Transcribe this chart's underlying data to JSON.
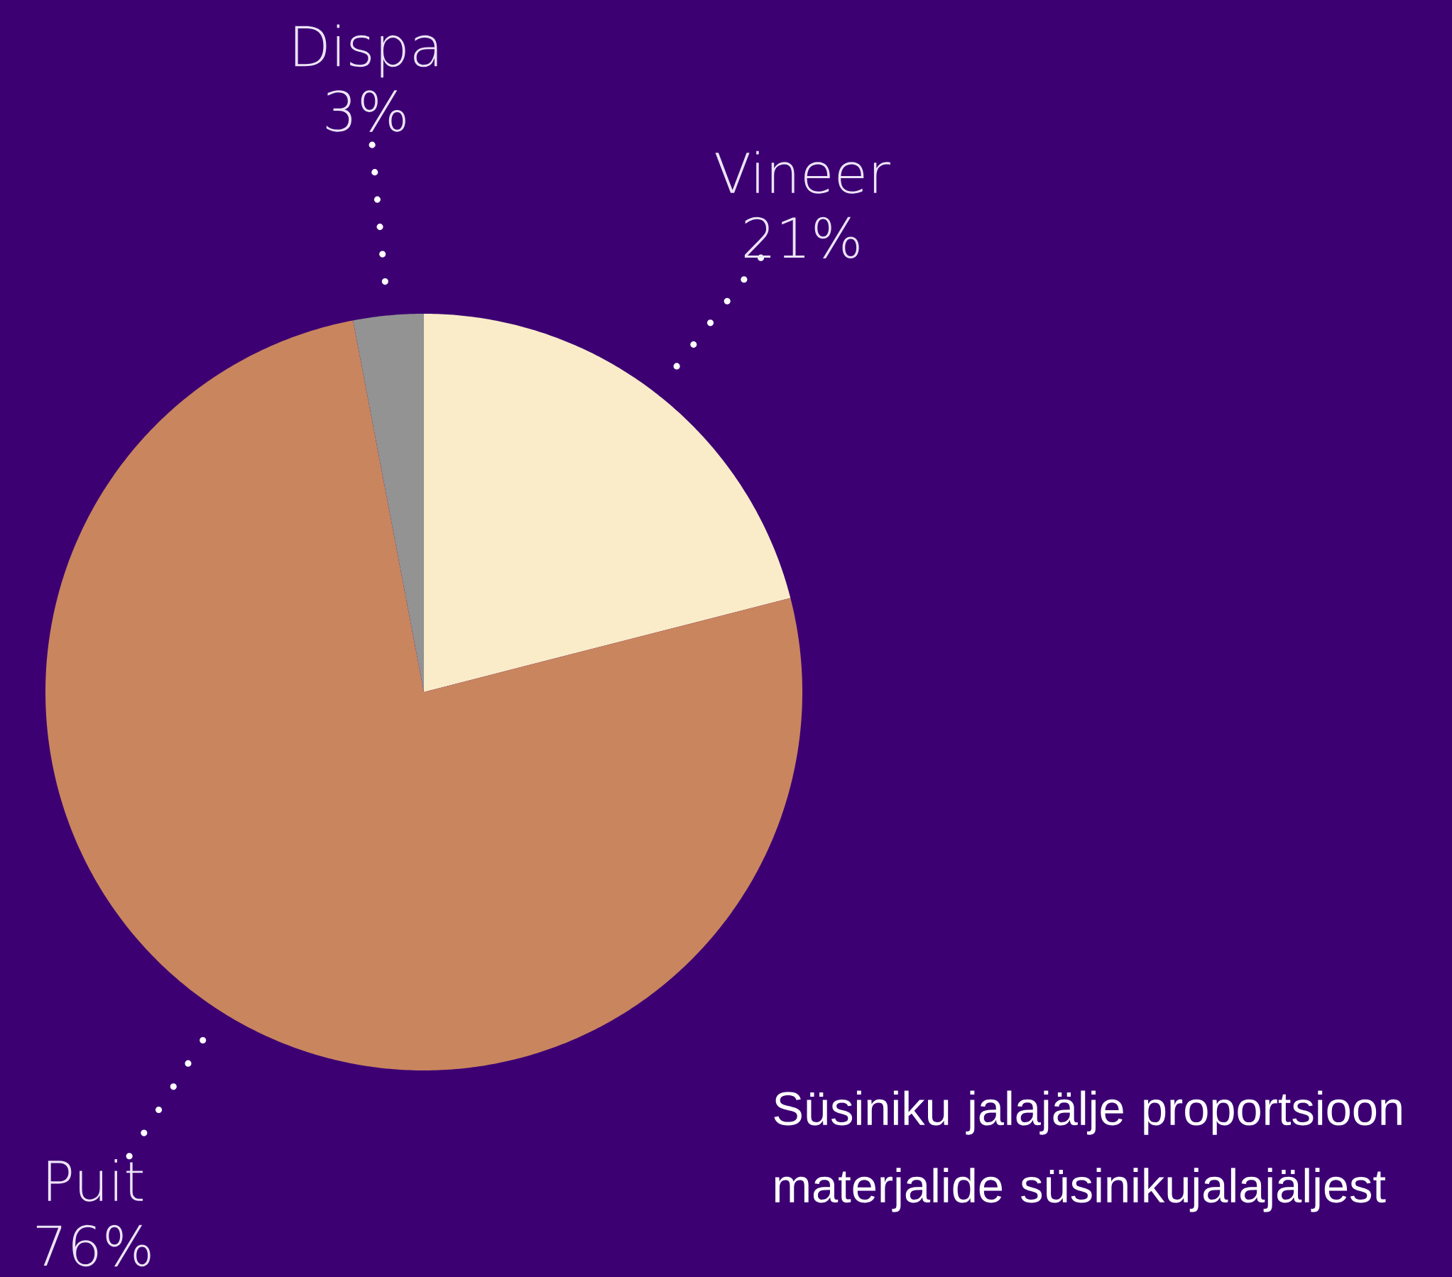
{
  "chart_data": {
    "type": "pie",
    "title": "Süsiniku jalajälje proportsioon materjalide süsinikujalajäljest",
    "categories": [
      "Vineer",
      "Puit",
      "Dispa"
    ],
    "values": [
      21,
      76,
      3
    ],
    "value_labels": [
      "21%",
      "76%",
      "3%"
    ],
    "colors": [
      "#faecc8",
      "#c9855e",
      "#939393"
    ]
  }
}
